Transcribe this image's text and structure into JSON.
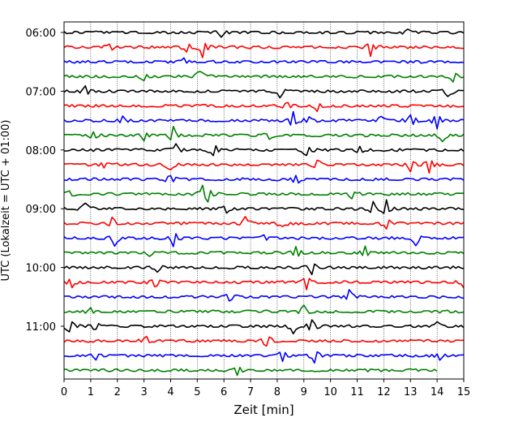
{
  "chart_data": {
    "type": "line",
    "title": "",
    "xlabel": "Zeit  [min]",
    "ylabel": "UTC (Lokalzeit = UTC + 01:00)",
    "xlim": [
      0,
      15
    ],
    "x_ticks": [
      "0",
      "1",
      "2",
      "3",
      "4",
      "5",
      "6",
      "7",
      "8",
      "9",
      "10",
      "11",
      "12",
      "13",
      "14",
      "15"
    ],
    "y_tick_labels": [
      "06:00",
      "07:00",
      "08:00",
      "09:00",
      "10:00",
      "11:00"
    ],
    "grid": "vertical dotted at each minute",
    "trace_minutes": 15,
    "trace_colors": [
      "#000000",
      "#ff0000",
      "#0000ff",
      "#008000"
    ],
    "traces": [
      {
        "start": "06:00",
        "color": "#000000",
        "events": [
          [
            5.9,
            0.8
          ],
          [
            12.9,
            0.8
          ]
        ]
      },
      {
        "start": "06:15",
        "color": "#ff0000",
        "events": [
          [
            1.7,
            0.8
          ],
          [
            4.6,
            0.8
          ],
          [
            5.2,
            2.0
          ],
          [
            11.5,
            1.8
          ]
        ]
      },
      {
        "start": "06:30",
        "color": "#0000ff",
        "events": [
          [
            4.5,
            0.7
          ]
        ]
      },
      {
        "start": "06:45",
        "color": "#008000",
        "events": [
          [
            3.0,
            0.7
          ],
          [
            5.1,
            1.6
          ],
          [
            14.6,
            1.0
          ]
        ]
      },
      {
        "start": "07:00",
        "color": "#000000",
        "events": [
          [
            0.8,
            1.0
          ],
          [
            8.1,
            1.2
          ],
          [
            14.4,
            1.8
          ]
        ]
      },
      {
        "start": "07:15",
        "color": "#ff0000",
        "events": [
          [
            8.4,
            1.0
          ],
          [
            9.5,
            1.0
          ]
        ]
      },
      {
        "start": "07:30",
        "color": "#0000ff",
        "events": [
          [
            2.2,
            0.8
          ],
          [
            8.6,
            1.6
          ],
          [
            9.2,
            1.0
          ],
          [
            11.9,
            1.1
          ],
          [
            13.0,
            1.6
          ],
          [
            14.0,
            1.6
          ]
        ]
      },
      {
        "start": "07:45",
        "color": "#008000",
        "events": [
          [
            1.1,
            1.0
          ],
          [
            3.0,
            1.0
          ],
          [
            4.1,
            1.6
          ],
          [
            7.7,
            0.8
          ],
          [
            14.2,
            1.6
          ]
        ]
      },
      {
        "start": "08:00",
        "color": "#000000",
        "events": [
          [
            4.2,
            1.2
          ],
          [
            5.6,
            1.8
          ],
          [
            9.1,
            1.6
          ],
          [
            11.1,
            0.8
          ]
        ]
      },
      {
        "start": "08:15",
        "color": "#ff0000",
        "events": [
          [
            1.5,
            0.8
          ],
          [
            4.0,
            1.6
          ],
          [
            9.5,
            1.2
          ],
          [
            13.0,
            1.8
          ],
          [
            13.7,
            1.6
          ]
        ]
      },
      {
        "start": "08:30",
        "color": "#0000ff",
        "events": [
          [
            4.0,
            1.2
          ],
          [
            8.7,
            1.4
          ]
        ]
      },
      {
        "start": "08:45",
        "color": "#008000",
        "events": [
          [
            0.2,
            0.8
          ],
          [
            5.2,
            1.6
          ],
          [
            5.4,
            1.2
          ],
          [
            10.8,
            0.8
          ]
        ]
      },
      {
        "start": "09:00",
        "color": "#000000",
        "events": [
          [
            0.8,
            1.5
          ],
          [
            6.1,
            1.0
          ],
          [
            11.6,
            1.5
          ],
          [
            12.1,
            1.8
          ]
        ]
      },
      {
        "start": "09:15",
        "color": "#ff0000",
        "events": [
          [
            1.8,
            1.2
          ],
          [
            6.8,
            1.6
          ],
          [
            8.2,
            0.8
          ],
          [
            12.1,
            1.2
          ]
        ]
      },
      {
        "start": "09:30",
        "color": "#0000ff",
        "events": [
          [
            1.9,
            1.6
          ],
          [
            4.1,
            1.8
          ],
          [
            7.5,
            1.0
          ],
          [
            13.2,
            1.6
          ]
        ]
      },
      {
        "start": "09:45",
        "color": "#008000",
        "events": [
          [
            3.2,
            0.7
          ],
          [
            8.7,
            1.6
          ],
          [
            11.3,
            1.6
          ]
        ]
      },
      {
        "start": "10:00",
        "color": "#000000",
        "events": [
          [
            3.5,
            1.0
          ],
          [
            9.3,
            1.6
          ]
        ]
      },
      {
        "start": "10:15",
        "color": "#ff0000",
        "events": [
          [
            0.3,
            1.0
          ],
          [
            3.4,
            1.6
          ],
          [
            9.1,
            1.4
          ],
          [
            15.0,
            1.0
          ]
        ]
      },
      {
        "start": "10:30",
        "color": "#0000ff",
        "events": [
          [
            6.2,
            1.1
          ],
          [
            10.7,
            1.4
          ]
        ]
      },
      {
        "start": "10:45",
        "color": "#008000",
        "events": [
          [
            1.0,
            0.6
          ],
          [
            9.0,
            1.4
          ]
        ]
      },
      {
        "start": "11:00",
        "color": "#000000",
        "events": [
          [
            0.2,
            2.0
          ],
          [
            1.2,
            1.0
          ],
          [
            8.6,
            1.6
          ],
          [
            9.3,
            1.4
          ],
          [
            14.0,
            0.8
          ]
        ]
      },
      {
        "start": "11:15",
        "color": "#ff0000",
        "events": [
          [
            3.1,
            1.0
          ],
          [
            7.6,
            1.6
          ]
        ]
      },
      {
        "start": "11:30",
        "color": "#0000ff",
        "events": [
          [
            1.2,
            0.8
          ],
          [
            8.2,
            1.2
          ],
          [
            9.4,
            1.4
          ],
          [
            14.1,
            0.8
          ]
        ]
      },
      {
        "start": "11:45",
        "color": "#008000",
        "events": [
          [
            6.5,
            1.2
          ]
        ],
        "end_minute": 14.0
      }
    ]
  }
}
